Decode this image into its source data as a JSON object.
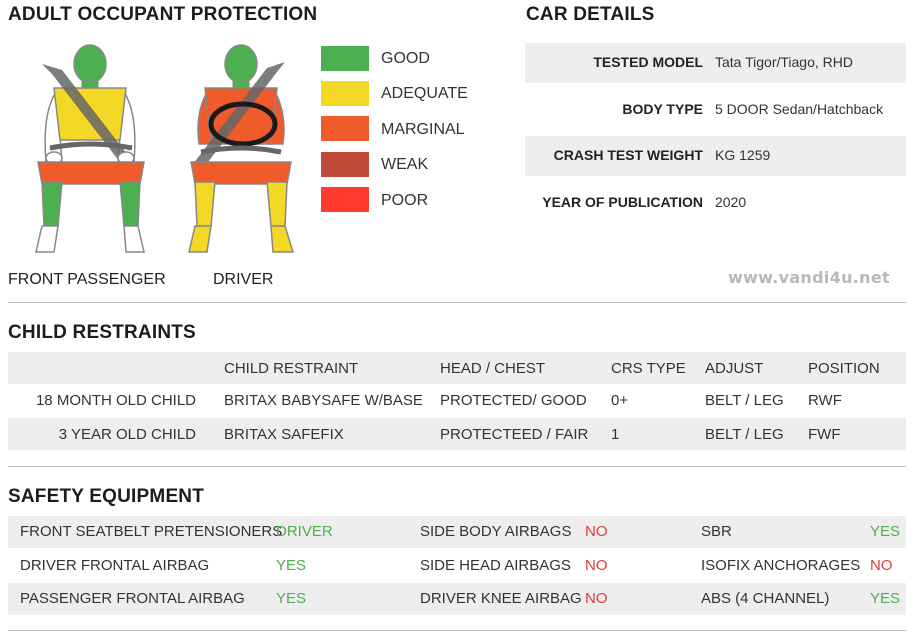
{
  "adult": {
    "title": "ADULT OCCUPANT PROTECTION",
    "front_passenger_label": "FRONT PASSENGER",
    "driver_label": "DRIVER",
    "legend": [
      {
        "label": "GOOD",
        "color": "#4caf50"
      },
      {
        "label": "ADEQUATE",
        "color": "#f4d826"
      },
      {
        "label": "MARGINAL",
        "color": "#ef5b2b"
      },
      {
        "label": "WEAK",
        "color": "#c0493a"
      },
      {
        "label": "POOR",
        "color": "#ff3b30"
      }
    ],
    "passenger_body": {
      "head": "GOOD",
      "chest": "ADEQUATE",
      "thighs": "MARGINAL",
      "lower_legs": "GOOD"
    },
    "driver_body": {
      "head": "GOOD",
      "chest": "MARGINAL",
      "thighs": "MARGINAL",
      "lower_legs": "ADEQUATE"
    }
  },
  "car_details": {
    "title": "CAR DETAILS",
    "rows": [
      {
        "key": "TESTED MODEL",
        "value": "Tata Tigor/Tiago, RHD"
      },
      {
        "key": "BODY TYPE",
        "value": "5 DOOR Sedan/Hatchback"
      },
      {
        "key": "CRASH TEST WEIGHT",
        "value": "KG 1259"
      },
      {
        "key": "YEAR OF PUBLICATION",
        "value": "2020"
      }
    ]
  },
  "watermark": "www.vandi4u.net",
  "child_restraints": {
    "title": "CHILD RESTRAINTS",
    "headers": [
      "",
      "CHILD RESTRAINT",
      "HEAD / CHEST",
      "CRS TYPE",
      "ADJUST",
      "POSITION"
    ],
    "rows": [
      [
        "18 MONTH OLD CHILD",
        "BRITAX BABYSAFE W/BASE",
        "PROTECTED/ GOOD",
        "0+",
        "BELT / LEG",
        "RWF"
      ],
      [
        "3 YEAR OLD CHILD",
        "BRITAX SAFEFIX",
        "PROTECTEED / FAIR",
        "1",
        "BELT / LEG",
        "FWF"
      ]
    ]
  },
  "safety_equipment": {
    "title": "SAFETY EQUIPMENT",
    "rows": [
      [
        {
          "label": "FRONT SEATBELT PRETENSIONERS",
          "value": "DRIVER",
          "status": "yes"
        },
        {
          "label": "SIDE BODY AIRBAGS",
          "value": "NO",
          "status": "no"
        },
        {
          "label": "SBR",
          "value": "YES",
          "status": "yes"
        }
      ],
      [
        {
          "label": "DRIVER FRONTAL AIRBAG",
          "value": "YES",
          "status": "yes"
        },
        {
          "label": "SIDE HEAD AIRBAGS",
          "value": "NO",
          "status": "no"
        },
        {
          "label": "ISOFIX ANCHORAGES",
          "value": "NO",
          "status": "no"
        }
      ],
      [
        {
          "label": "PASSENGER FRONTAL AIRBAG",
          "value": "YES",
          "status": "yes"
        },
        {
          "label": "DRIVER KNEE AIRBAG",
          "value": "NO",
          "status": "no"
        },
        {
          "label": "ABS (4 CHANNEL)",
          "value": "YES",
          "status": "yes"
        }
      ]
    ]
  }
}
